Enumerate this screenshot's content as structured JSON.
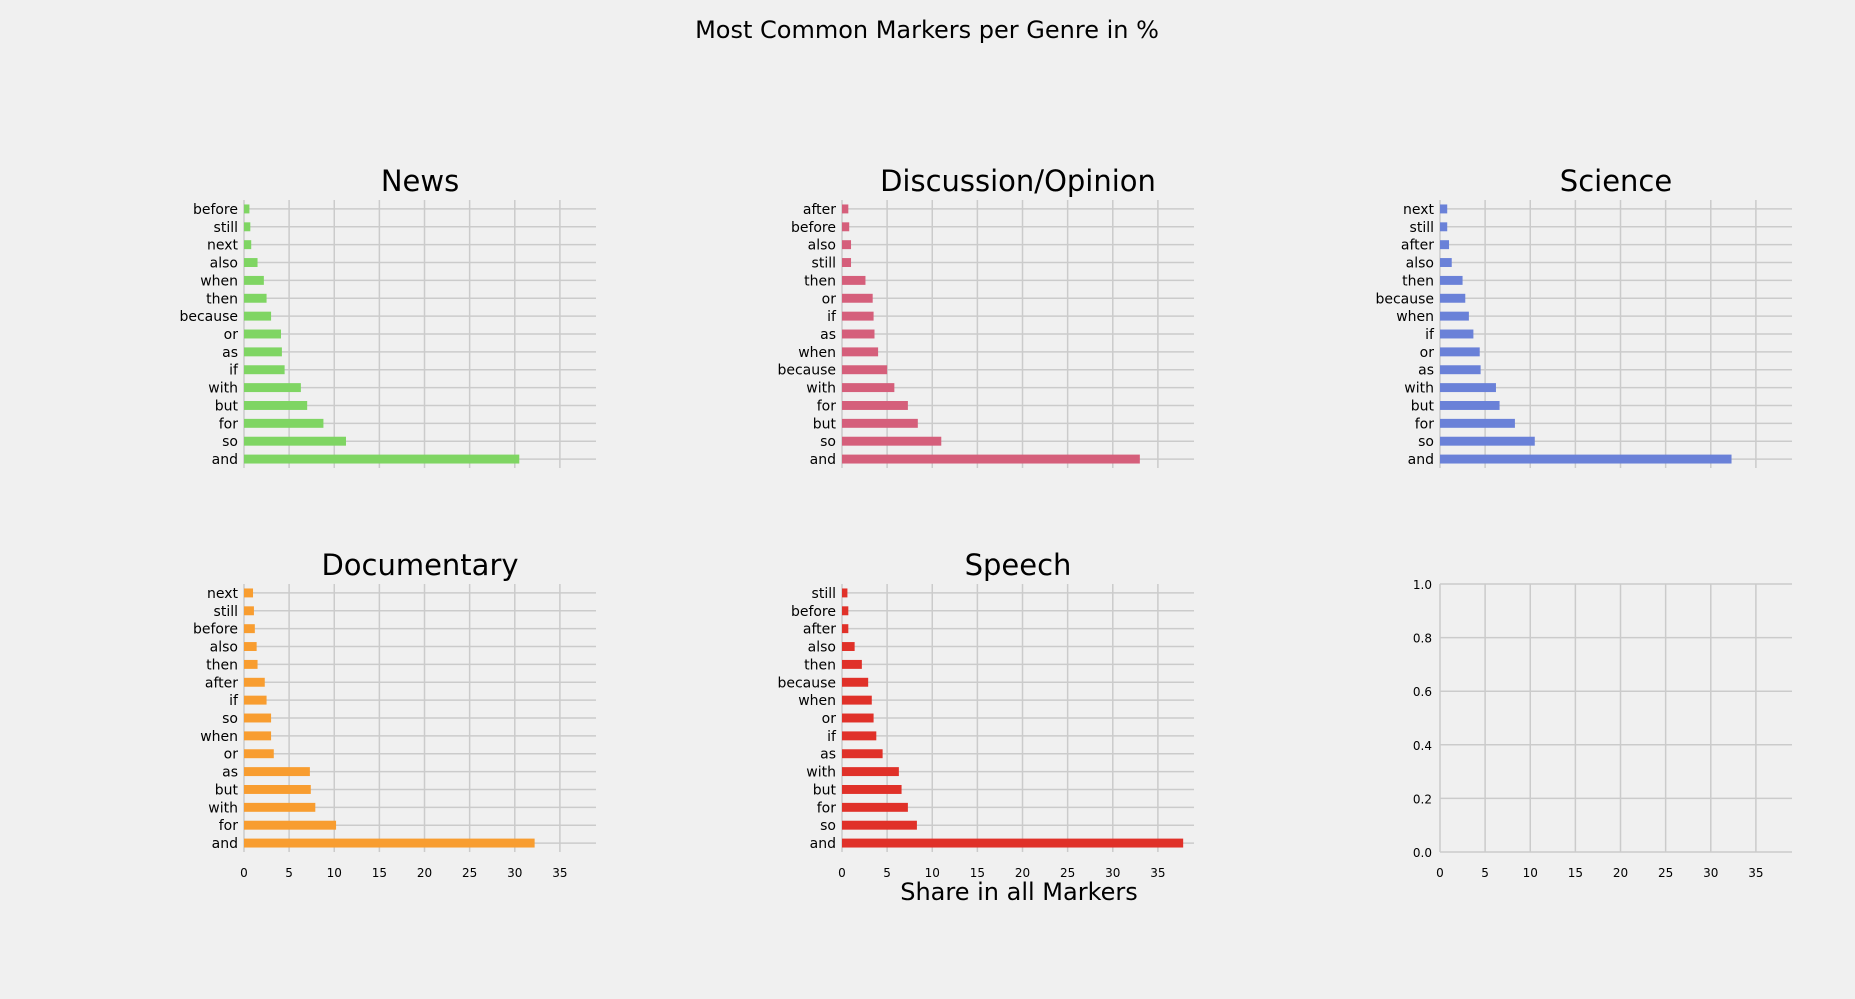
{
  "chart_data": {
    "title": "Most Common Markers per Genre in %",
    "xlabel": "Share in all Markers",
    "type": "bar",
    "xlim": [
      0,
      39
    ],
    "xticks": [
      0,
      5,
      10,
      15,
      20,
      25,
      30,
      35
    ],
    "grid": true,
    "panels": [
      {
        "title": "News",
        "color": "#7fd563",
        "categories": [
          "and",
          "so",
          "for",
          "but",
          "with",
          "if",
          "as",
          "or",
          "because",
          "then",
          "when",
          "also",
          "next",
          "still",
          "before"
        ],
        "values": [
          30.5,
          11.3,
          8.8,
          7.0,
          6.3,
          4.5,
          4.2,
          4.1,
          3.0,
          2.5,
          2.2,
          1.5,
          0.8,
          0.7,
          0.6
        ]
      },
      {
        "title": "Discussion/Opinion",
        "color": "#d55f7b",
        "categories": [
          "and",
          "so",
          "but",
          "for",
          "with",
          "because",
          "when",
          "as",
          "if",
          "or",
          "then",
          "still",
          "also",
          "before",
          "after"
        ],
        "values": [
          33.0,
          11.0,
          8.4,
          7.3,
          5.8,
          5.0,
          4.0,
          3.6,
          3.5,
          3.4,
          2.6,
          1.0,
          1.0,
          0.8,
          0.7
        ]
      },
      {
        "title": "Science",
        "color": "#6a81d8",
        "categories": [
          "and",
          "so",
          "for",
          "but",
          "with",
          "as",
          "or",
          "if",
          "when",
          "because",
          "then",
          "also",
          "after",
          "still",
          "next"
        ],
        "values": [
          32.3,
          10.5,
          8.3,
          6.6,
          6.2,
          4.5,
          4.4,
          3.7,
          3.2,
          2.8,
          2.5,
          1.3,
          1.0,
          0.8,
          0.8
        ]
      },
      {
        "title": "Documentary",
        "color": "#f89d30",
        "categories": [
          "and",
          "for",
          "with",
          "but",
          "as",
          "or",
          "when",
          "so",
          "if",
          "after",
          "then",
          "also",
          "before",
          "still",
          "next"
        ],
        "values": [
          32.2,
          10.2,
          7.9,
          7.4,
          7.3,
          3.3,
          3.0,
          3.0,
          2.5,
          2.3,
          1.5,
          1.4,
          1.2,
          1.1,
          1.0
        ]
      },
      {
        "title": "Speech",
        "color": "#e03129",
        "categories": [
          "and",
          "so",
          "for",
          "but",
          "with",
          "as",
          "if",
          "or",
          "when",
          "because",
          "then",
          "also",
          "after",
          "before",
          "still"
        ],
        "values": [
          37.8,
          8.3,
          7.3,
          6.6,
          6.3,
          4.5,
          3.8,
          3.5,
          3.3,
          2.9,
          2.2,
          1.4,
          0.7,
          0.7,
          0.6
        ]
      }
    ],
    "empty_panel": {
      "yticks": [
        "0.0",
        "0.2",
        "0.4",
        "0.6",
        "0.8",
        "1.0"
      ]
    }
  }
}
